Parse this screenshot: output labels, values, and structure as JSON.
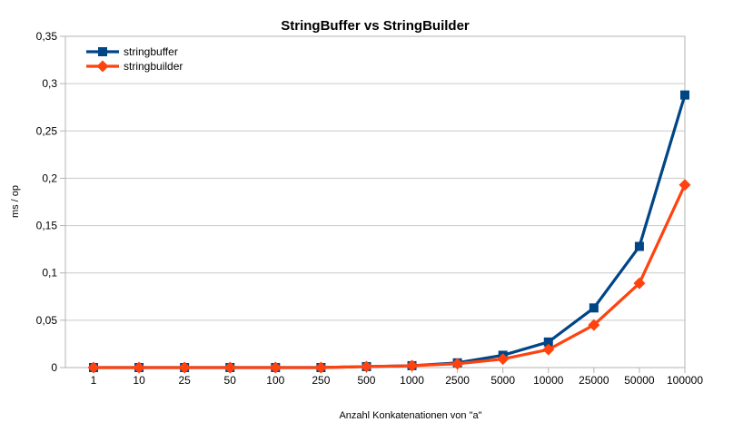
{
  "chart_data": {
    "type": "line",
    "title": "StringBuffer vs StringBuilder",
    "xlabel": "Anzahl Konkatenationen von \"a\"",
    "ylabel": "ms / op",
    "categories": [
      "1",
      "10",
      "25",
      "50",
      "100",
      "250",
      "500",
      "1000",
      "2500",
      "5000",
      "10000",
      "25000",
      "50000",
      "100000"
    ],
    "series": [
      {
        "name": "stringbuffer",
        "color": "#004586",
        "marker": "square",
        "values": [
          0,
          0,
          0,
          0,
          0,
          0,
          0.001,
          0.002,
          0.005,
          0.013,
          0.027,
          0.063,
          0.128,
          0.288
        ]
      },
      {
        "name": "stringbuilder",
        "color": "#ff420e",
        "marker": "diamond",
        "values": [
          0,
          0,
          0,
          0,
          0,
          0,
          0.001,
          0.002,
          0.004,
          0.009,
          0.019,
          0.045,
          0.089,
          0.193
        ]
      }
    ],
    "y_ticks": [
      {
        "value": 0,
        "label": "0"
      },
      {
        "value": 0.05,
        "label": "0,05"
      },
      {
        "value": 0.1,
        "label": "0,1"
      },
      {
        "value": 0.15,
        "label": "0,15"
      },
      {
        "value": 0.2,
        "label": "0,2"
      },
      {
        "value": 0.25,
        "label": "0,25"
      },
      {
        "value": 0.3,
        "label": "0,3"
      },
      {
        "value": 0.35,
        "label": "0,35"
      }
    ],
    "ylim": [
      0,
      0.35
    ],
    "grid": "horizontal",
    "legend": {
      "position": "top-left",
      "entries": [
        "stringbuffer",
        "stringbuilder"
      ]
    },
    "colors": {
      "grid": "#c9c9c9",
      "plot_border": "#b3b3b3",
      "text": "#000000",
      "background": "#ffffff"
    }
  }
}
